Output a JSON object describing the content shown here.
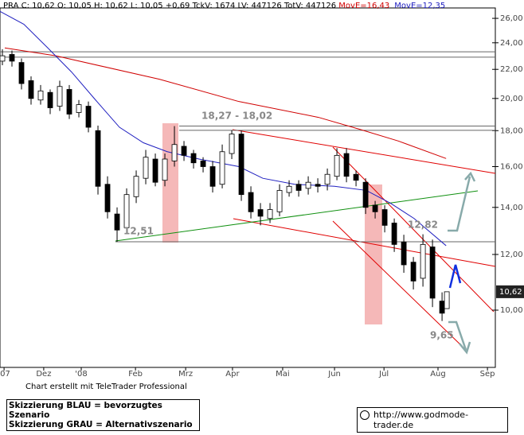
{
  "chart_data": {
    "type": "candlestick",
    "header": "PRA C: 10,62 O: 10,05 H: 10,62 L: 10,05 +0,69 TckV: 1674 LV: 447126 TotV: 447126",
    "x": [
      1,
      5,
      9,
      13,
      17,
      21,
      25,
      29,
      33,
      37,
      41,
      45,
      49,
      53,
      57,
      61,
      65,
      69,
      73,
      77,
      81,
      85,
      89,
      93,
      97,
      101,
      105,
      109,
      113,
      117,
      121,
      125,
      129,
      133,
      137,
      141,
      145,
      149,
      153,
      157,
      161,
      165,
      169,
      173,
      177,
      181,
      185,
      187
    ],
    "open": [
      22.6,
      23.1,
      22.5,
      21.2,
      19.9,
      20.4,
      19.5,
      20.6,
      19.1,
      19.5,
      18.0,
      15.1,
      13.7,
      13.1,
      14.5,
      15.4,
      16.4,
      15.3,
      16.3,
      17.1,
      16.7,
      16.3,
      16.0,
      15.1,
      16.7,
      17.8,
      14.7,
      13.9,
      13.5,
      13.8,
      14.7,
      15.1,
      14.9,
      15.1,
      15.1,
      15.5,
      16.7,
      15.6,
      15.2,
      14.1,
      13.9,
      13.3,
      12.5,
      11.7,
      11.1,
      12.3,
      10.3,
      10.05
    ],
    "high": [
      23.5,
      23.4,
      22.8,
      21.5,
      20.9,
      20.6,
      21.2,
      20.9,
      19.9,
      19.8,
      18.3,
      15.5,
      14.0,
      14.9,
      15.8,
      16.9,
      16.7,
      16.7,
      18.27,
      17.4,
      16.9,
      16.5,
      16.3,
      17.2,
      18.02,
      18.0,
      15.0,
      14.2,
      14.2,
      15.1,
      15.3,
      15.3,
      15.5,
      15.4,
      15.9,
      17.0,
      17.0,
      15.8,
      15.4,
      14.3,
      14.1,
      13.5,
      12.8,
      11.9,
      12.82,
      12.6,
      10.6,
      10.62
    ],
    "low": [
      22.3,
      22.2,
      20.6,
      19.6,
      19.6,
      19.0,
      19.2,
      18.7,
      18.8,
      17.9,
      14.6,
      13.5,
      12.51,
      12.9,
      14.2,
      15.1,
      15.0,
      15.0,
      16.0,
      16.3,
      15.9,
      15.7,
      14.7,
      14.9,
      16.4,
      14.3,
      13.5,
      13.2,
      13.3,
      13.6,
      14.5,
      14.5,
      14.6,
      14.7,
      14.8,
      15.3,
      15.2,
      15.0,
      13.7,
      13.5,
      12.9,
      12.1,
      11.3,
      10.7,
      10.8,
      10.1,
      9.65,
      10.05
    ],
    "close": [
      23.0,
      22.6,
      21.0,
      20.0,
      20.5,
      19.4,
      20.8,
      19.0,
      19.6,
      18.2,
      15.0,
      13.8,
      13.0,
      14.6,
      15.5,
      16.5,
      15.2,
      16.4,
      17.2,
      16.6,
      16.2,
      16.0,
      15.0,
      16.8,
      17.8,
      14.6,
      13.8,
      13.6,
      13.9,
      14.8,
      15.0,
      14.8,
      15.2,
      15.0,
      15.6,
      16.6,
      15.5,
      15.3,
      14.0,
      13.8,
      13.2,
      12.4,
      11.6,
      11.0,
      12.4,
      10.4,
      9.9,
      10.62
    ],
    "series": [
      {
        "name": "MovE=16,43",
        "color": "#d00000",
        "x": [
          2,
          23.3,
          66.7,
          100,
          133.3,
          150,
          166.7,
          186.7
        ],
        "values": [
          23.6,
          23.0,
          21.3,
          19.8,
          18.8,
          18.1,
          17.4,
          16.43
        ]
      },
      {
        "name": "MovE=12,35",
        "color": "#2020c0",
        "x": [
          0,
          10,
          20,
          30,
          40,
          50,
          60,
          70,
          83.3,
          100,
          110,
          123.3,
          140,
          153.3,
          163.3,
          173.3,
          186.7
        ],
        "values": [
          26.6,
          25.5,
          23.6,
          21.8,
          19.9,
          18.2,
          17.3,
          16.8,
          16.4,
          16.0,
          15.4,
          15.1,
          15.0,
          14.8,
          14.2,
          13.5,
          12.35
        ]
      }
    ],
    "levels": [
      23.3,
      22.9,
      18.27,
      18.02,
      12.51
    ],
    "last_price": {
      "value": 10.62,
      "label": "10,62"
    },
    "annotations": [
      "18,27 - 18,02",
      "12,51",
      "12,82",
      "9,65"
    ],
    "xlim": [
      0,
      207.3
    ],
    "xticks": [
      {
        "value": 1.7,
        "label": "'07"
      },
      {
        "value": 18.3,
        "label": "Dez"
      },
      {
        "value": 34,
        "label": "'08"
      },
      {
        "value": 56.7,
        "label": "Feb"
      },
      {
        "value": 77.7,
        "label": "Mrz"
      },
      {
        "value": 97.3,
        "label": "Apr"
      },
      {
        "value": 118.3,
        "label": "Mai"
      },
      {
        "value": 140,
        "label": "Jun"
      },
      {
        "value": 160.7,
        "label": "Jul"
      },
      {
        "value": 183.3,
        "label": "Aug"
      },
      {
        "value": 204,
        "label": "Sep"
      }
    ],
    "ylim": [
      8.29,
      26.9
    ],
    "log_scale": true,
    "yticks": [
      {
        "value": 10,
        "label": "10,00"
      },
      {
        "value": 12,
        "label": "12,00"
      },
      {
        "value": 14,
        "label": "14,00"
      },
      {
        "value": 16,
        "label": "16,00"
      },
      {
        "value": 18,
        "label": "18,00"
      },
      {
        "value": 20,
        "label": "20,00"
      },
      {
        "value": 22,
        "label": "22,00"
      },
      {
        "value": 24,
        "label": "24,00"
      },
      {
        "value": 26,
        "label": "26,00"
      }
    ],
    "credit": "Chart erstellt mit TeleTrader Professional",
    "legend_notes": [
      "Skizzierung BLAU = bevorzugtes Szenario",
      "Skizzierung GRAU = Alternativszenario"
    ],
    "url": "http://www.godmode-trader.de"
  }
}
